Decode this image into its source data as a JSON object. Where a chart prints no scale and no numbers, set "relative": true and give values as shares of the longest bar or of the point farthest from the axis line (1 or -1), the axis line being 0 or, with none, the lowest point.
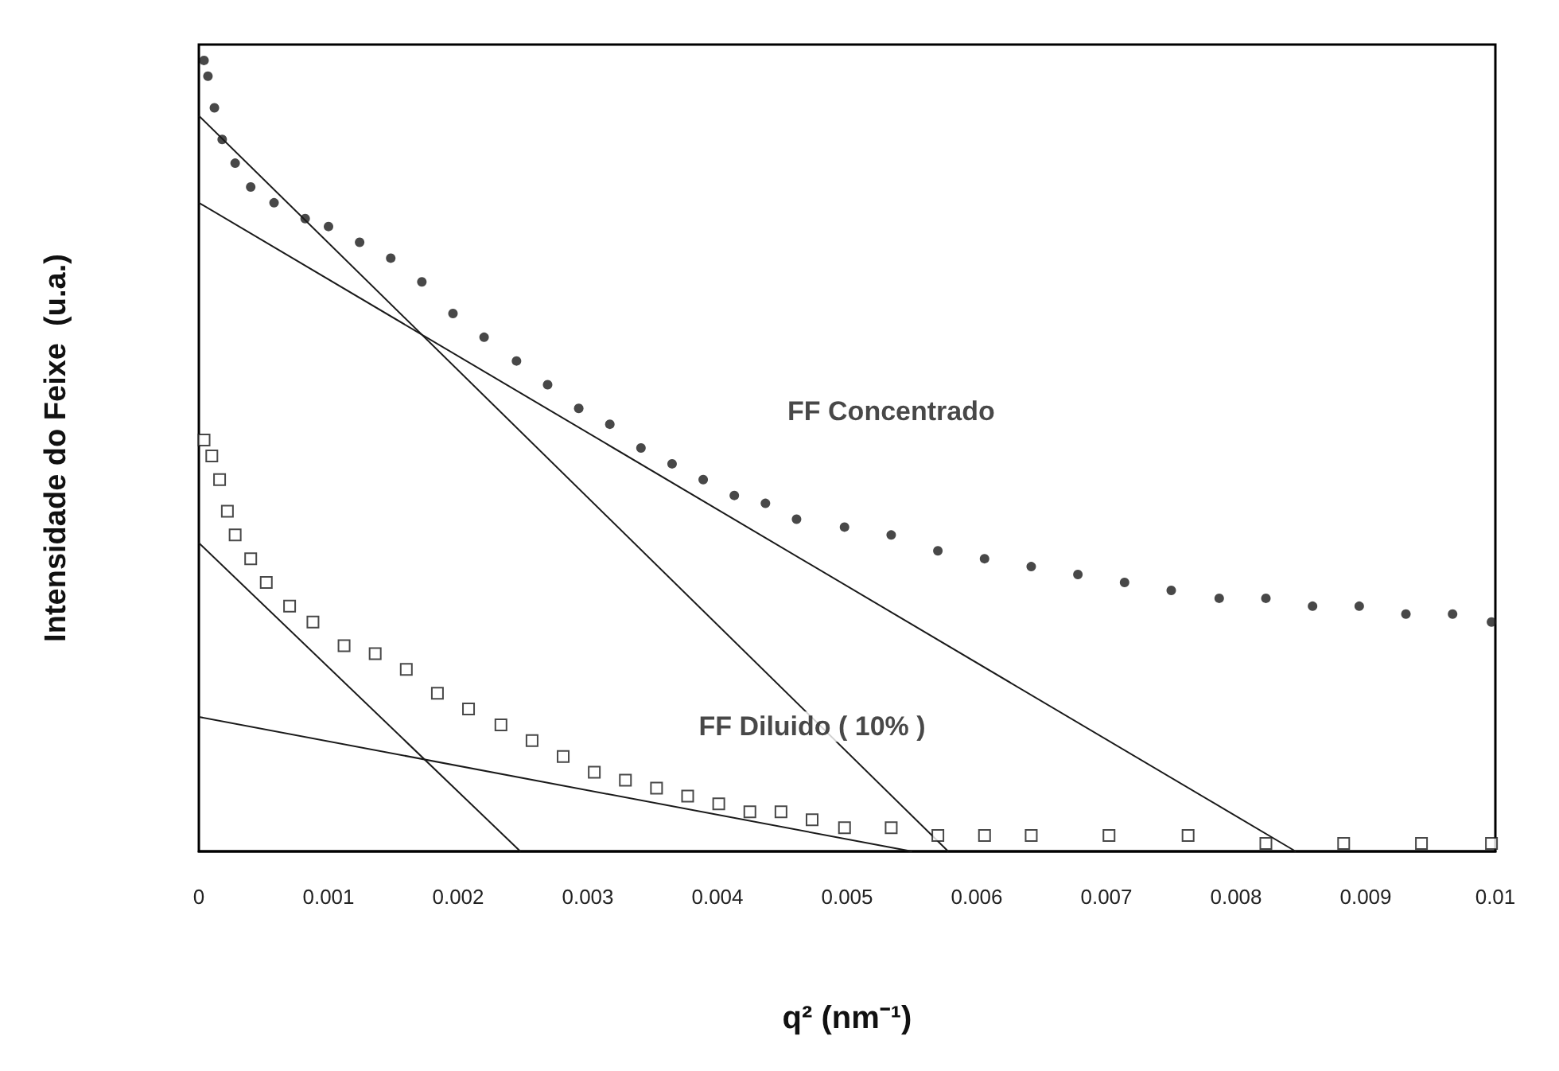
{
  "chart_data": {
    "type": "scatter",
    "xlabel": "q² (nm⁻¹)",
    "ylabel": "Intensidade do Feixe  (u.a.)",
    "relative": true,
    "xlim": [
      0,
      0.01
    ],
    "xticks": [
      0,
      0.001,
      0.002,
      0.003,
      0.004,
      0.005,
      0.006,
      0.007,
      0.008,
      0.009,
      0.01
    ],
    "tick_labels": "x",
    "grid": false,
    "legend": false,
    "series": [
      {
        "name": "FF Concentrado",
        "color": "#1a1a1a",
        "marker": "circle",
        "x": [
          4e-05,
          7e-05,
          0.00012,
          0.00018,
          0.00028,
          0.0004,
          0.00058,
          0.00082,
          0.001,
          0.00124,
          0.00148,
          0.00172,
          0.00196,
          0.0022,
          0.00245,
          0.00269,
          0.00293,
          0.00317,
          0.00341,
          0.00365,
          0.00389,
          0.00413,
          0.00437,
          0.00461,
          0.00498,
          0.00534,
          0.0057,
          0.00606,
          0.00642,
          0.00678,
          0.00714,
          0.0075,
          0.00787,
          0.00823,
          0.00859,
          0.00895,
          0.00931,
          0.00967,
          0.00997
        ],
        "values": [
          1.0,
          0.98,
          0.94,
          0.9,
          0.87,
          0.84,
          0.82,
          0.8,
          0.79,
          0.77,
          0.75,
          0.72,
          0.68,
          0.65,
          0.62,
          0.59,
          0.56,
          0.54,
          0.51,
          0.49,
          0.47,
          0.45,
          0.44,
          0.42,
          0.41,
          0.4,
          0.38,
          0.37,
          0.36,
          0.35,
          0.34,
          0.33,
          0.32,
          0.32,
          0.31,
          0.31,
          0.3,
          0.3,
          0.29
        ]
      },
      {
        "name": "FF Diluido ( 10% )",
        "color": "#1a1a1a",
        "marker": "square",
        "x": [
          4e-05,
          0.0001,
          0.00016,
          0.00022,
          0.00028,
          0.0004,
          0.00052,
          0.0007,
          0.00088,
          0.00112,
          0.00136,
          0.0016,
          0.00184,
          0.00208,
          0.00233,
          0.00257,
          0.00281,
          0.00305,
          0.00329,
          0.00353,
          0.00377,
          0.00401,
          0.00425,
          0.00449,
          0.00473,
          0.00498,
          0.00534,
          0.0057,
          0.00606,
          0.00642,
          0.00702,
          0.00763,
          0.00823,
          0.00883,
          0.00943,
          0.00997
        ],
        "values": [
          0.52,
          0.5,
          0.47,
          0.43,
          0.4,
          0.37,
          0.34,
          0.31,
          0.29,
          0.26,
          0.25,
          0.23,
          0.2,
          0.18,
          0.16,
          0.14,
          0.12,
          0.1,
          0.09,
          0.08,
          0.07,
          0.06,
          0.05,
          0.05,
          0.04,
          0.03,
          0.03,
          0.02,
          0.02,
          0.02,
          0.02,
          0.02,
          0.01,
          0.01,
          0.01,
          0.01
        ]
      },
      {
        "type": "line",
        "color": "#1a1a1a",
        "marker": "none",
        "x": [
          0,
          0.00578
        ],
        "values": [
          0.93,
          0
        ]
      },
      {
        "type": "line",
        "color": "#1a1a1a",
        "marker": "none",
        "x": [
          0,
          0.00846
        ],
        "values": [
          0.82,
          0
        ]
      },
      {
        "type": "line",
        "color": "#1a1a1a",
        "marker": "none",
        "x": [
          0,
          0.00248
        ],
        "values": [
          0.39,
          0
        ]
      },
      {
        "type": "line",
        "color": "#1a1a1a",
        "marker": "none",
        "x": [
          0,
          0.0055
        ],
        "values": [
          0.17,
          0
        ]
      }
    ]
  }
}
